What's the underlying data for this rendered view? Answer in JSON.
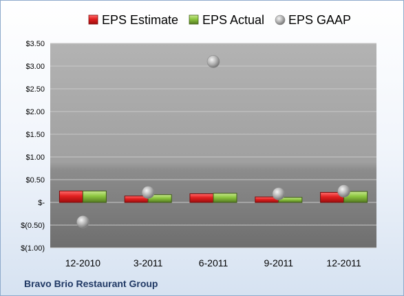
{
  "chart_data": {
    "type": "bar",
    "categories": [
      "12-2010",
      "3-2011",
      "6-2011",
      "9-2011",
      "12-2011"
    ],
    "series": [
      {
        "name": "EPS Estimate",
        "type": "bar",
        "color": "#e02020",
        "values": [
          0.25,
          0.14,
          0.19,
          0.12,
          0.22
        ]
      },
      {
        "name": "EPS Actual",
        "type": "bar",
        "color": "#8cc63f",
        "values": [
          0.25,
          0.17,
          0.2,
          0.11,
          0.24
        ]
      },
      {
        "name": "EPS GAAP",
        "type": "scatter",
        "color": "#a6a6a6",
        "values": [
          -0.43,
          0.22,
          3.1,
          0.19,
          0.25
        ]
      }
    ],
    "y_ticks": [
      {
        "value": 3.5,
        "label": "$3.50"
      },
      {
        "value": 3.0,
        "label": "$3.00"
      },
      {
        "value": 2.5,
        "label": "$2.50"
      },
      {
        "value": 2.0,
        "label": "$2.00"
      },
      {
        "value": 1.5,
        "label": "$1.50"
      },
      {
        "value": 1.0,
        "label": "$1.00"
      },
      {
        "value": 0.5,
        "label": "$0.50"
      },
      {
        "value": 0.0,
        "label": "$-"
      },
      {
        "value": -0.5,
        "label": "$(0.50)"
      },
      {
        "value": -1.0,
        "label": "$(1.00)"
      }
    ],
    "ylim": [
      -1.0,
      3.5
    ],
    "grid": true,
    "legend_position": "top",
    "footer": "Bravo Brio Restaurant Group"
  }
}
